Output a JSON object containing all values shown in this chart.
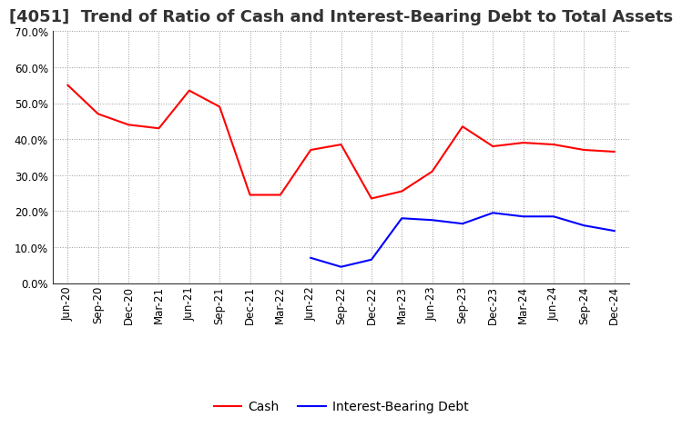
{
  "title": "[4051]  Trend of Ratio of Cash and Interest-Bearing Debt to Total Assets",
  "x_labels": [
    "Jun-20",
    "Sep-20",
    "Dec-20",
    "Mar-21",
    "Jun-21",
    "Sep-21",
    "Dec-21",
    "Mar-22",
    "Jun-22",
    "Sep-22",
    "Dec-22",
    "Mar-23",
    "Jun-23",
    "Sep-23",
    "Dec-23",
    "Mar-24",
    "Jun-24",
    "Sep-24",
    "Dec-24"
  ],
  "cash_values": [
    0.55,
    0.47,
    0.44,
    0.43,
    0.535,
    0.49,
    0.245,
    0.245,
    0.37,
    0.385,
    0.235,
    0.255,
    0.31,
    0.435,
    0.38,
    0.39,
    0.385,
    0.37,
    0.365
  ],
  "debt_values": [
    null,
    null,
    null,
    null,
    null,
    null,
    null,
    null,
    0.07,
    0.045,
    0.065,
    0.18,
    0.175,
    0.165,
    0.195,
    0.185,
    0.185,
    0.16,
    0.145
  ],
  "cash_color": "#FF0000",
  "debt_color": "#0000FF",
  "ylim": [
    0.0,
    0.7
  ],
  "yticks": [
    0.0,
    0.1,
    0.2,
    0.3,
    0.4,
    0.5,
    0.6,
    0.7
  ],
  "background_color": "#FFFFFF",
  "grid_color": "#999999",
  "title_fontsize": 13,
  "legend_fontsize": 10,
  "tick_fontsize": 8.5
}
